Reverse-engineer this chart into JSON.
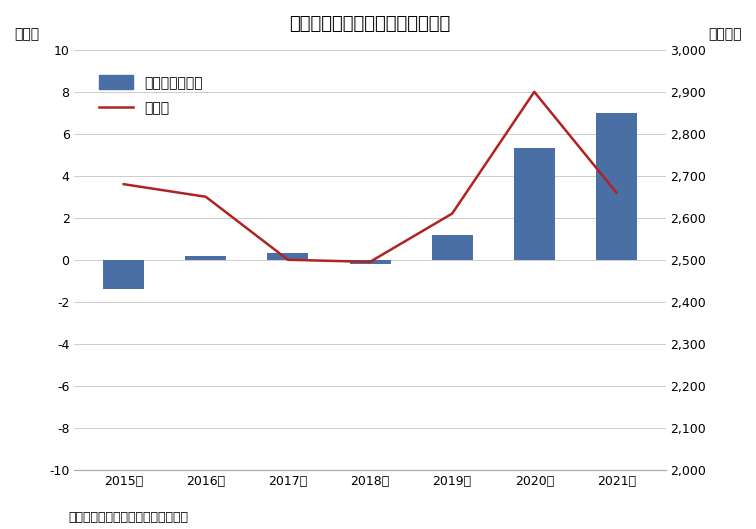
{
  "title": "ペット・ペット用品販売額の推移",
  "years": [
    "2015年",
    "2016年",
    "2017年",
    "2018年",
    "2019年",
    "2020年",
    "2021年"
  ],
  "bar_values": [
    -1.4,
    0.2,
    0.3,
    -0.2,
    1.2,
    5.3,
    7.0
  ],
  "line_values": [
    2680,
    2650,
    2500,
    2495,
    2610,
    2900,
    2660
  ],
  "bar_color": "#4a6fa5",
  "line_color": "#b22222",
  "left_ylim": [
    -10,
    10
  ],
  "right_ylim": [
    2000,
    3000
  ],
  "left_yticks": [
    -10,
    -8,
    -6,
    -4,
    -2,
    0,
    2,
    4,
    6,
    8,
    10
  ],
  "right_yticks": [
    2000,
    2100,
    2200,
    2300,
    2400,
    2500,
    2600,
    2700,
    2800,
    2900,
    3000
  ],
  "left_ylabel": "（％）",
  "right_ylabel": "（億円）",
  "legend_bar": "販売額（右側）",
  "legend_line": "前年比",
  "footnote": "資料：商業動態統計（経済産業省）",
  "background_color": "#ffffff",
  "grid_color": "#cccccc",
  "title_fontsize": 13,
  "label_fontsize": 10,
  "tick_fontsize": 9,
  "footnote_fontsize": 9
}
